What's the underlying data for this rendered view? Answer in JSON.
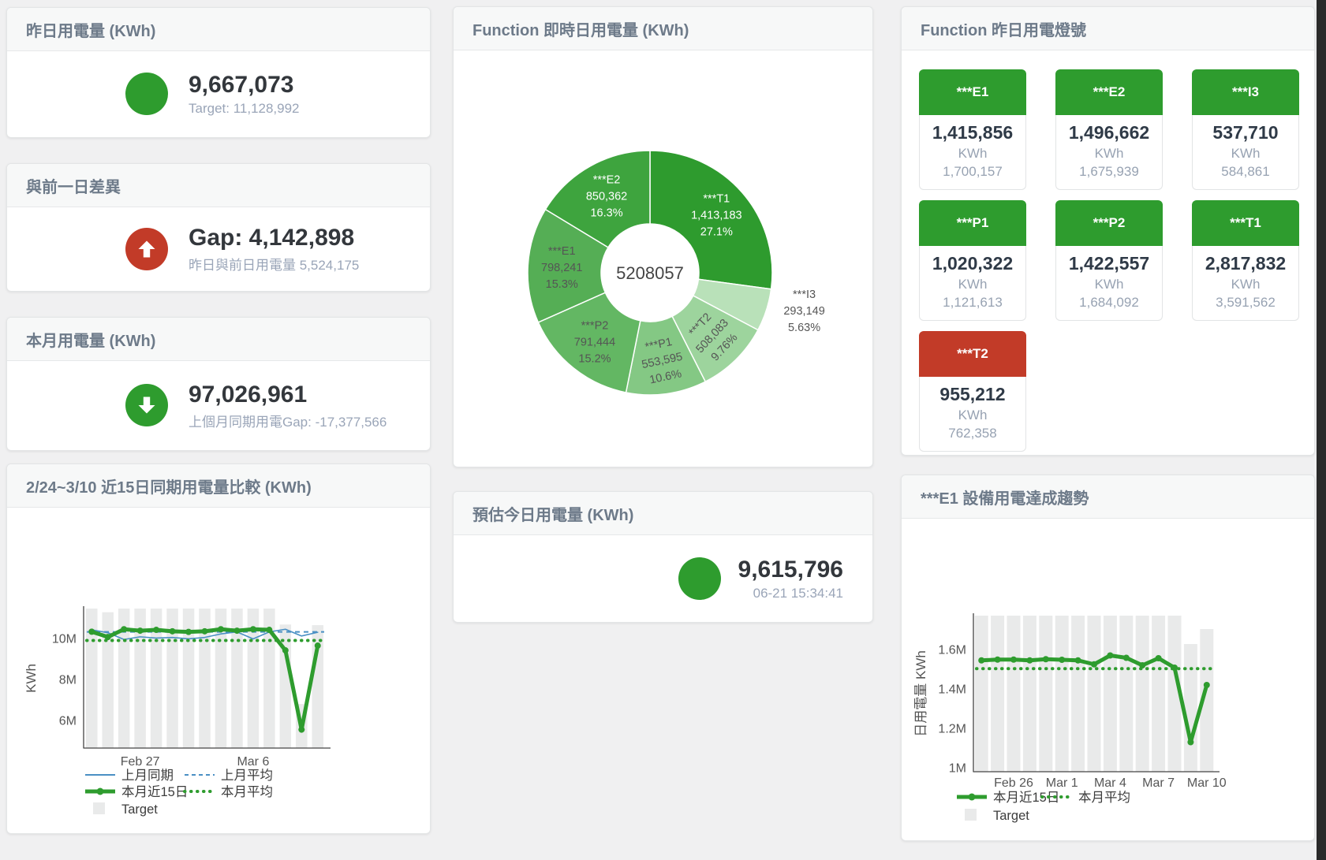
{
  "kpi_cards": [
    {
      "title": "昨日用電量 (KWh)",
      "value": "9,667,073",
      "subtitle": "Target: 11,128,992",
      "indicator": "dot",
      "indicator_color": "#2e9c2e"
    },
    {
      "title": "與前一日差異",
      "value": "Gap: 4,142,898",
      "subtitle": "昨日與前日用電量 5,524,175",
      "indicator": "arrow-up",
      "indicator_color": "#c23b28"
    },
    {
      "title": "本月用電量 (KWh)",
      "value": "97,026,961",
      "subtitle": "上個月同期用電Gap: -17,377,566",
      "indicator": "arrow-down",
      "indicator_color": "#2e9c2e"
    },
    {
      "title": "預估今日用電量 (KWh)",
      "value": "9,615,796",
      "subtitle": "06-21 15:34:41",
      "indicator": "dot",
      "indicator_color": "#2e9c2e"
    }
  ],
  "status_board": {
    "title": "Function 昨日用電燈號",
    "unit": "KWh",
    "tiles": [
      {
        "name": "***E1",
        "value": "1,415,856",
        "prev": "1,700,157",
        "status_color": "#2e9c2e"
      },
      {
        "name": "***E2",
        "value": "1,496,662",
        "prev": "1,675,939",
        "status_color": "#2e9c2e"
      },
      {
        "name": "***I3",
        "value": "537,710",
        "prev": "584,861",
        "status_color": "#2e9c2e"
      },
      {
        "name": "***P1",
        "value": "1,020,322",
        "prev": "1,121,613",
        "status_color": "#2e9c2e"
      },
      {
        "name": "***P2",
        "value": "1,422,557",
        "prev": "1,684,092",
        "status_color": "#2e9c2e"
      },
      {
        "name": "***T1",
        "value": "2,817,832",
        "prev": "3,591,562",
        "status_color": "#2e9c2e"
      },
      {
        "name": "***T2",
        "value": "955,212",
        "prev": "762,358",
        "status_color": "#c23b28"
      }
    ]
  },
  "chart_data": [
    {
      "id": "realtime-donut",
      "type": "pie",
      "title": "Function 即時日用電量 (KWh)",
      "center_label": "5208057",
      "slices": [
        {
          "name": "***T1",
          "value": 1413183,
          "pct_label": "27.1%",
          "color": "#2e9b2e",
          "text": "#ffffff"
        },
        {
          "name": "***I3",
          "value": 293149,
          "pct_label": "5.63%",
          "color": "#b9e1b9",
          "text": "#555555",
          "outside": true
        },
        {
          "name": "***T2",
          "value": 508083,
          "pct_label": "9.76%",
          "color": "#9dd49d",
          "text": "#555555",
          "rotate": -47
        },
        {
          "name": "***P1",
          "value": 553595,
          "pct_label": "10.6%",
          "color": "#84c884",
          "text": "#555555",
          "rotate": -12
        },
        {
          "name": "***P2",
          "value": 791444,
          "pct_label": "15.2%",
          "color": "#63b763",
          "text": "#555555"
        },
        {
          "name": "***E1",
          "value": 798241,
          "pct_label": "15.3%",
          "color": "#55ae55",
          "text": "#555555"
        },
        {
          "name": "***E2",
          "value": 850362,
          "pct_label": "16.3%",
          "color": "#3ea43e",
          "text": "#ffffff"
        }
      ]
    },
    {
      "id": "compare-15d",
      "type": "line+bar",
      "title": "2/24~3/10 近15日同期用電量比較 (KWh)",
      "ylabel": "KWh",
      "unit": "M KWh",
      "vmin": 4.65,
      "vmax": 11.46,
      "yticks": [
        {
          "v": 6,
          "label": "6M"
        },
        {
          "v": 8,
          "label": "8M"
        },
        {
          "v": 10,
          "label": "10M"
        }
      ],
      "xticks": [
        {
          "i": 3,
          "label": "Feb 27"
        },
        {
          "i": 10,
          "label": "Mar 6"
        }
      ],
      "target_bars": [
        11.46,
        11.28,
        11.46,
        11.46,
        11.46,
        11.46,
        11.46,
        11.46,
        11.46,
        11.46,
        11.46,
        11.46,
        10.68,
        6.8,
        10.65
      ],
      "target_label": "Target",
      "series": [
        {
          "name": "上月同期",
          "type": "line",
          "color": "#4a90c4",
          "width": 1.6,
          "values": [
            10.42,
            10.28,
            9.95,
            10.08,
            10.02,
            10.05,
            9.98,
            10.05,
            10.22,
            10.32,
            9.98,
            10.32,
            10.45,
            10.12,
            10.3
          ]
        },
        {
          "name": "上月平均",
          "type": "dashed",
          "color": "#4a90c4",
          "width": 2,
          "value": 10.32
        },
        {
          "name": "本月近15日",
          "type": "thick",
          "color": "#2e9c2e",
          "width": 5,
          "values": [
            10.33,
            10.07,
            10.45,
            10.38,
            10.42,
            10.35,
            10.32,
            10.35,
            10.45,
            10.38,
            10.45,
            10.42,
            9.42,
            5.55,
            9.65
          ]
        },
        {
          "name": "本月平均",
          "type": "dotted",
          "color": "#2e9c2e",
          "width": 4,
          "value": 9.9
        }
      ]
    },
    {
      "id": "e1-trend",
      "type": "line+bar",
      "title": "***E1 設備用電達成趨勢",
      "ylabel": "日用電量 KWh",
      "unit": "M KWh",
      "vmin": 0.98,
      "vmax": 1.772,
      "yticks": [
        {
          "v": 1.0,
          "label": "1M"
        },
        {
          "v": 1.2,
          "label": "1.2M"
        },
        {
          "v": 1.4,
          "label": "1.4M"
        },
        {
          "v": 1.6,
          "label": "1.6M"
        }
      ],
      "xticks": [
        {
          "i": 2,
          "label": "Feb 26"
        },
        {
          "i": 5,
          "label": "Mar 1"
        },
        {
          "i": 8,
          "label": "Mar 4"
        },
        {
          "i": 11,
          "label": "Mar 7"
        },
        {
          "i": 14,
          "label": "Mar 10"
        }
      ],
      "target_bars": [
        1.772,
        1.772,
        1.772,
        1.772,
        1.772,
        1.772,
        1.772,
        1.772,
        1.772,
        1.772,
        1.772,
        1.772,
        1.772,
        1.628,
        1.704
      ],
      "target_label": "Target",
      "series": [
        {
          "name": "本月近15日",
          "type": "thick",
          "color": "#2e9c2e",
          "width": 5,
          "values": [
            1.545,
            1.549,
            1.549,
            1.545,
            1.551,
            1.548,
            1.545,
            1.525,
            1.57,
            1.558,
            1.52,
            1.556,
            1.508,
            1.13,
            1.42
          ]
        },
        {
          "name": "本月平均",
          "type": "dotted",
          "color": "#2e9c2e",
          "width": 4,
          "value": 1.503
        }
      ]
    }
  ]
}
